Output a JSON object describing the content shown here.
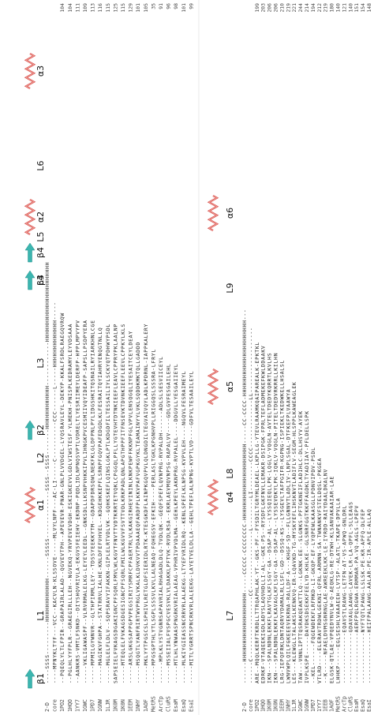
{
  "panels": [
    {
      "structure": [
        "β1",
        "L1",
        "α1",
        "L2",
        "β2",
        "L3",
        "β3",
        "L4",
        "β4",
        "L5",
        "α2",
        "L6",
        "α3"
      ],
      "rows": [
        {
          "name": "2-D",
          "sequence": "----SSSS---------HHHHHHHHHHHH------SSSSS-------------SSSS--SSSS-------HHHHHHHHHHHH------------HHHHHHHHHHHHHHHHHHHHHH",
          "end": ""
        },
        {
          "name": "core",
          "sequence": "----MPNYKLTYF---VCC--KACVLN-KLSSOVE-----MLVYLNPF---AC-LI-----C----------CCC------L-----HHHHHHHHHHHHH-----",
          "end": ""
        },
        {
          "name": "1PO2",
          "sequence": "--PQEQLYLTLFPIR--GRAPAIRLALAD--QGVEVTPH--APEVEVR-PNAR-GNLPLVVDGEL-LYQSRAVLEYL-DEKYP-KKALFSRDLRAEGQVRQW",
          "end": "104"
        },
        {
          "name": "1HQO",
          "sequence": "--PGLHLYYFPLR--GRAEGIRLLLEH--NGVEKQ-YRVPEVEVDGH-ESKIGKEVVLGDLVIWSTESF-YLMEKH-PNISPLKEDRAMYLEYVDSAAA",
          "end": "104"
        },
        {
          "name": "1YY7",
          "sequence": "--AANKRS-VMTLFSNKD--DIYSHQVRIVLA-EKGVSFEIEHV-EKDNP-PQDLIDLNPNQSVPTLVDRELTLYESRIIMEYLDERFP-HPPLMPVYPV",
          "end": "111"
        },
        {
          "name": "1GWC",
          "sequence": "-----VKLIGAWASPF--VLRVRMALELKG-LEYEYLEEDL--GNKSDLLLKSNPVHKKIPVLIHNGKPVCESMIIVQYIDEAFP-SAPSLLPSDPYERA",
          "end": "109"
        },
        {
          "name": "1PD7",
          "sequence": "-----MPMILGYWNVR--GLTHPIRMLLEY--TDSSYEEKKYTM--GDAPDFDRSQWLNEKFKLGLDFPNLPYLIDGSHKITQSNAILRYIARKHNLCGE",
          "end": "113"
        },
        {
          "name": "1GNW",
          "sequence": "-----MAGIKVFGHPA--STATRRVLIALHE-KNLDFEFVHVEL--KDGEHKKEPFLSRNPFGQVPAFEDGDLKLFESRAITQYIAHRYENQGTNLLQ",
          "end": "116"
        },
        {
          "name": "1LJR",
          "sequence": "-----MGLELFLDLV--SQPSRAVYIFAKKN-GIPLELRTVDLVK--GQHKSKEFLQINSLGKLPTLKDGDFILTESSAILIYLSCKYQTPDHWYPSDL",
          "end": "115"
        },
        {
          "name": "1K0M",
          "sequence": "SAPSEIELFVKAGSDGAKIGNCPFSQRLFMVLWLKGVTFNVTTVDTKRRTETVQKLCPGGQLPFLLYGTEVHTDTNKIEEFLEAVLCPPRYPKLAALNP",
          "end": "125"
        },
        {
          "name": "1K0N",
          "sequence": "-----MTEQLELFVKAGSDGESIGNCPFSQRLFMILWLKGVVFSVTTVDLKRKPADLQNLAPGTHPPFITFNSEVKTDVNKIEEFLEEVLCPPKYLKLS",
          "end": "115"
        },
        {
          "name": "1EEM",
          "sequence": "-----ARSLGKGSAPPGPVPEGSIRIYSMRFCPFAERTRLVLKAKGIRHEVININLKNKPEWFFKKNPFGLVPVLENSQGQLIYESAITCEYLDEAY",
          "end": "129"
        },
        {
          "name": "1NHY",
          "sequence": "-----MSQGTLYANFRIRTWVPRGLVKALKLDVKVVTPDAAAEQFARDFPLKKVPAFVGPKGYKLTEAMAINYYLVKLSQDDKMKTQLLGADDD",
          "end": "101"
        },
        {
          "name": "1AOF",
          "sequence": "-----MKLYYTPGSCSLSPHIVLRETGLDFSIERIDLRTK-KTESGKDFLAINPKGQVPVLQLDNGDILTEGVAIVQYLADLKPDRNL-IAPPKALERY",
          "end": "105"
        },
        {
          "name": "MetRS",
          "sequence": "-----MPGSGPTHLYTLSGPLSSSVLKVLLALNEAQ-FQHEGSV-EFKIH----PERLASLTGKLKPGNHVPLLRIGGQSLSSSRA-LFRYL",
          "end": "35"
        },
        {
          "name": "ArcTp",
          "sequence": "------MPLKLYSTVGNRSAPAVRIALRHAGADLDLQ-TVDLQK--GEQFSPEFLQVNPRG-RVPALDH------ADLSLSESVIICEYL",
          "end": "91"
        },
        {
          "name": "CluRS",
          "sequence": "-----MSSEIIALFVSPGCVESVKLVLDAKKLPFTVK-RVDLRSA--EKRLAEVMQVNPSG-RAPALVV----GDLGVFESGAILEHL",
          "end": "96"
        },
        {
          "name": "EsaM",
          "sequence": "-----MTLHLYNWAASPNGRKVRIALAEAG-VPHRIVPVDLMA--GEHLKPEYLAKNPRG-RVPALEL----DDGVLLYESGAIIEYL",
          "end": "98"
        },
        {
          "name": "EsaQ",
          "sequence": "-----MLKIYGIEASSNCRRVRLALAEKG-LTYEFVRIDLRQ--KENLSPEFLKLNPSG-KVPVLEH----NGQVLFESRAIMEYL",
          "end": "101"
        },
        {
          "name": "EsaI",
          "sequence": "-----MITLYGRRTSPNCRKVRLALEEKG-LAYETVELDLLA--GEHLTPEFLALNPNG-KVPTLVD----GDFVLTESAAILEYL",
          "end": "99"
        }
      ]
    },
    {
      "structure": [
        "L7",
        "α4",
        "L8",
        "α5",
        "L9",
        "α6"
      ],
      "rows": [
        {
          "name": "2-D",
          "sequence": "------HHHHHHHHHHHHHHHHHHH-----CCCCC-CCCCCCCC-HHHHHHHHHHHHHHHHHHHHH-----CC-CCCC-HHHHHHHHHHHHHHHHHHHHH---",
          "end": ""
        },
        {
          "name": "core",
          "sequence": "------C-----------------CC----------------L--------LI--------CCCC-------------LL------------------",
          "end": ""
        },
        {
          "name": "1PO2",
          "sequence": "ARE--MQQLKERFTKRDLLTTRQAPHLAK-YT--GKS-PF--FYSDILTGRYMLDEAEL-LKPLLG-YTEVLRAAMKQAIPAREALK-EPKTKL",
          "end": "199"
        },
        {
          "name": "1HQO",
          "sequence": "EDRKF-VTAQEEKIGDLADYSLAQVHDLLI-AL--GKE-PS--RYSDFLGKFNVLLEMAKR-DSIPGK-FPRLTEFLADMEKEFKWLDDAAKV",
          "end": "203"
        },
        {
          "name": "1K0M",
          "sequence": "IKN---SPALNDNLEKKFLRAVTGLKFLSGY-GA--DSAP-AL--LYSSQIEQLLPK-LQGLV-VQGLN-AVTELTDEDYKQRRTLKVLHS",
          "end": "206"
        },
        {
          "name": "1K0N",
          "sequence": "IKN---SPALNDNLEKKFLKAVAGLKFLSGY-GA--DSAP-AL--LYSSEVDKYLPK-IQKLV-VQGLN-PITELTDEDVRKRRLLKILHN",
          "end": "206"
        },
        {
          "name": "1EEM",
          "sequence": "LRG-IEPQFRKLDNTAQRVYDAMALRLLSFL-GD--DSSQ-KS--LYSGEVLTAFPGIFR-KGPNG-ISPIEKLTKEDWKELLHSALSL",
          "end": "210"
        },
        {
          "name": "1NHY",
          "sequence": "LWNVWPLQILFGKEEEVEKRNA-RALLDF-A---KHGF-SD--FLLGNNVTLADLIV-LNPLSGAL-DTFKEFPLVAAWYA",
          "end": "219"
        },
        {
          "name": "1LJR",
          "sequence": "LES---KLEWGLLTALAKSLKENKVQ-ER-LQAVKD-TG-MYSKYEFLIHSKNVTLADIFLV-SEGM-HLSPPLKAWEAGLEK",
          "end": "221"
        },
        {
          "name": "1GWC",
          "sequence": "TAW---VNNLIPTTQSRAKQEAKTTLQ--LGKNK-EE--SLGNKS-PFTGKNEIFLADIHLC-DLLHSYV-AYEK",
          "end": "244"
        },
        {
          "name": "1GNW",
          "sequence": "IVPLKSPE-----DAYDKSDSEKKFEELYD-KHLKE--GLSNRFGGTKKFFAGDKLTYADIIAY-PFLDELLSPK",
          "end": "214"
        },
        {
          "name": "1PD7",
          "sequence": "--KEL------FQGEWDEKFLRFMKD-LI-GKQP-EF-LYQPEWLKAASGLLPDNVIPDV-PSDL",
          "end": "194"
        },
        {
          "name": "1YY7",
          "sequence": "VTLRD----ELERAVTRDWLGEKNI-QFRL-ARMNN-SA-TWNANKVFSTELDQSL-PKGEA",
          "end": "212"
        },
        {
          "name": "1EEB",
          "sequence": "--K-----NFAELDVMSGNRNGLAE-AWREEKLKK-LE-IYRDD-RAIYDAALDKALNV",
          "end": "219"
        },
        {
          "name": "1AOF",
          "sequence": "ELGSK-QTLAE-VPQEDYNVLW-Q-AEQKLG-RE-DTWH-KLSANVAKAAIAR-LAE",
          "end": "180"
        },
        {
          "name": "MetRS",
          "sequence": "LHHKP-----EGLSESHLVAAAEEH-LVTSP--ALATL-TKAPE-DPVLLA",
          "end": "140"
        },
        {
          "name": "ArcTp",
          "sequence": "--------------EQAVSTLRAWG-LETFN-AT-VS-APWQ-GNLDRL",
          "end": "121"
        },
        {
          "name": "CluRS",
          "sequence": "--------------GDAVAGLAAWG-LAVEK-LR-LA-QPFL-SLLEAGS",
          "end": "140"
        },
        {
          "name": "EsaM",
          "sequence": "--------------AERFPQLRGWA-ERMMAR-PA-VQ-AGLS-LPEPV",
          "end": "151"
        },
        {
          "name": "EsaQ",
          "sequence": "--------------NYFTQTLPAWG-LSLSK-PE-KR-APFQ-DLFEP",
          "end": "154"
        },
        {
          "name": "EsaI",
          "sequence": "--------------HEIFPALAAWG-AALAR-PE-IR-APLE-ALLAQ",
          "end": "148"
        }
      ]
    }
  ]
}
